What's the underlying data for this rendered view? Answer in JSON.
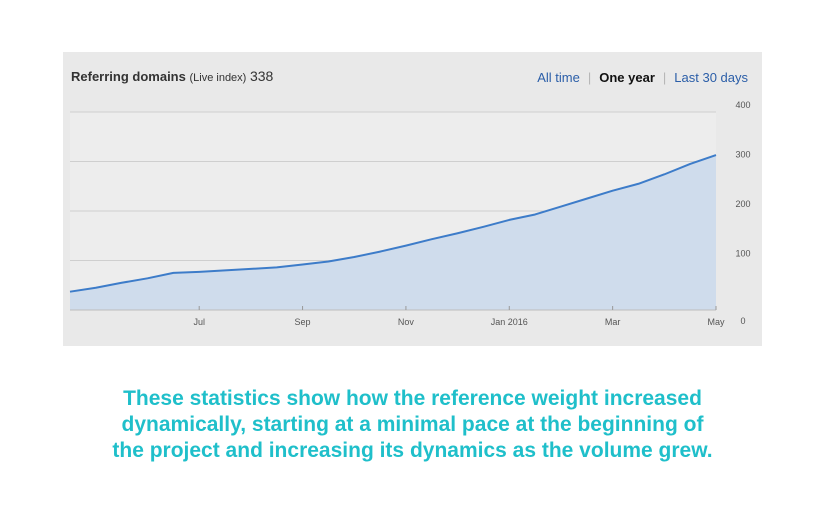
{
  "header": {
    "title": "Referring domains",
    "subtitle": "(Live index)",
    "count": "338",
    "tabs": [
      {
        "label": "All time",
        "active": false
      },
      {
        "label": "One year",
        "active": true
      },
      {
        "label": "Last 30 days",
        "active": false
      }
    ]
  },
  "chart_data": {
    "type": "area",
    "title": "Referring domains (Live index) 338",
    "xlabel": "",
    "ylabel": "",
    "ylim": [
      0,
      400
    ],
    "yticks": [
      0,
      100,
      200,
      300,
      400
    ],
    "x_labels": [
      "Jul",
      "Sep",
      "Nov",
      "Jan 2016",
      "Mar",
      "May"
    ],
    "x_label_positions": [
      2.5,
      4.5,
      6.5,
      8.5,
      10.5,
      12.5
    ],
    "x_range": [
      0,
      12.5
    ],
    "grid": true,
    "series": [
      {
        "name": "Referring domains",
        "x": [
          0,
          0.5,
          1,
          1.5,
          2,
          2.5,
          3,
          3.5,
          4,
          4.5,
          5,
          5.5,
          6,
          6.5,
          7,
          7.5,
          8,
          8.5,
          9,
          9.5,
          10,
          10.5,
          11,
          11.5,
          12,
          12.5
        ],
        "values": [
          37,
          45,
          55,
          64,
          75,
          77,
          80,
          83,
          86,
          92,
          98,
          107,
          118,
          130,
          143,
          155,
          168,
          182,
          193,
          209,
          225,
          241,
          255,
          274,
          295,
          313
        ],
        "color": "#3d7cc9",
        "fill": "#cfdcec"
      }
    ]
  },
  "caption": {
    "lines": [
      "These statistics show how the reference weight increased",
      "dynamically, starting at a minimal pace at the beginning of",
      "the project and increasing its dynamics as the volume grew."
    ]
  }
}
